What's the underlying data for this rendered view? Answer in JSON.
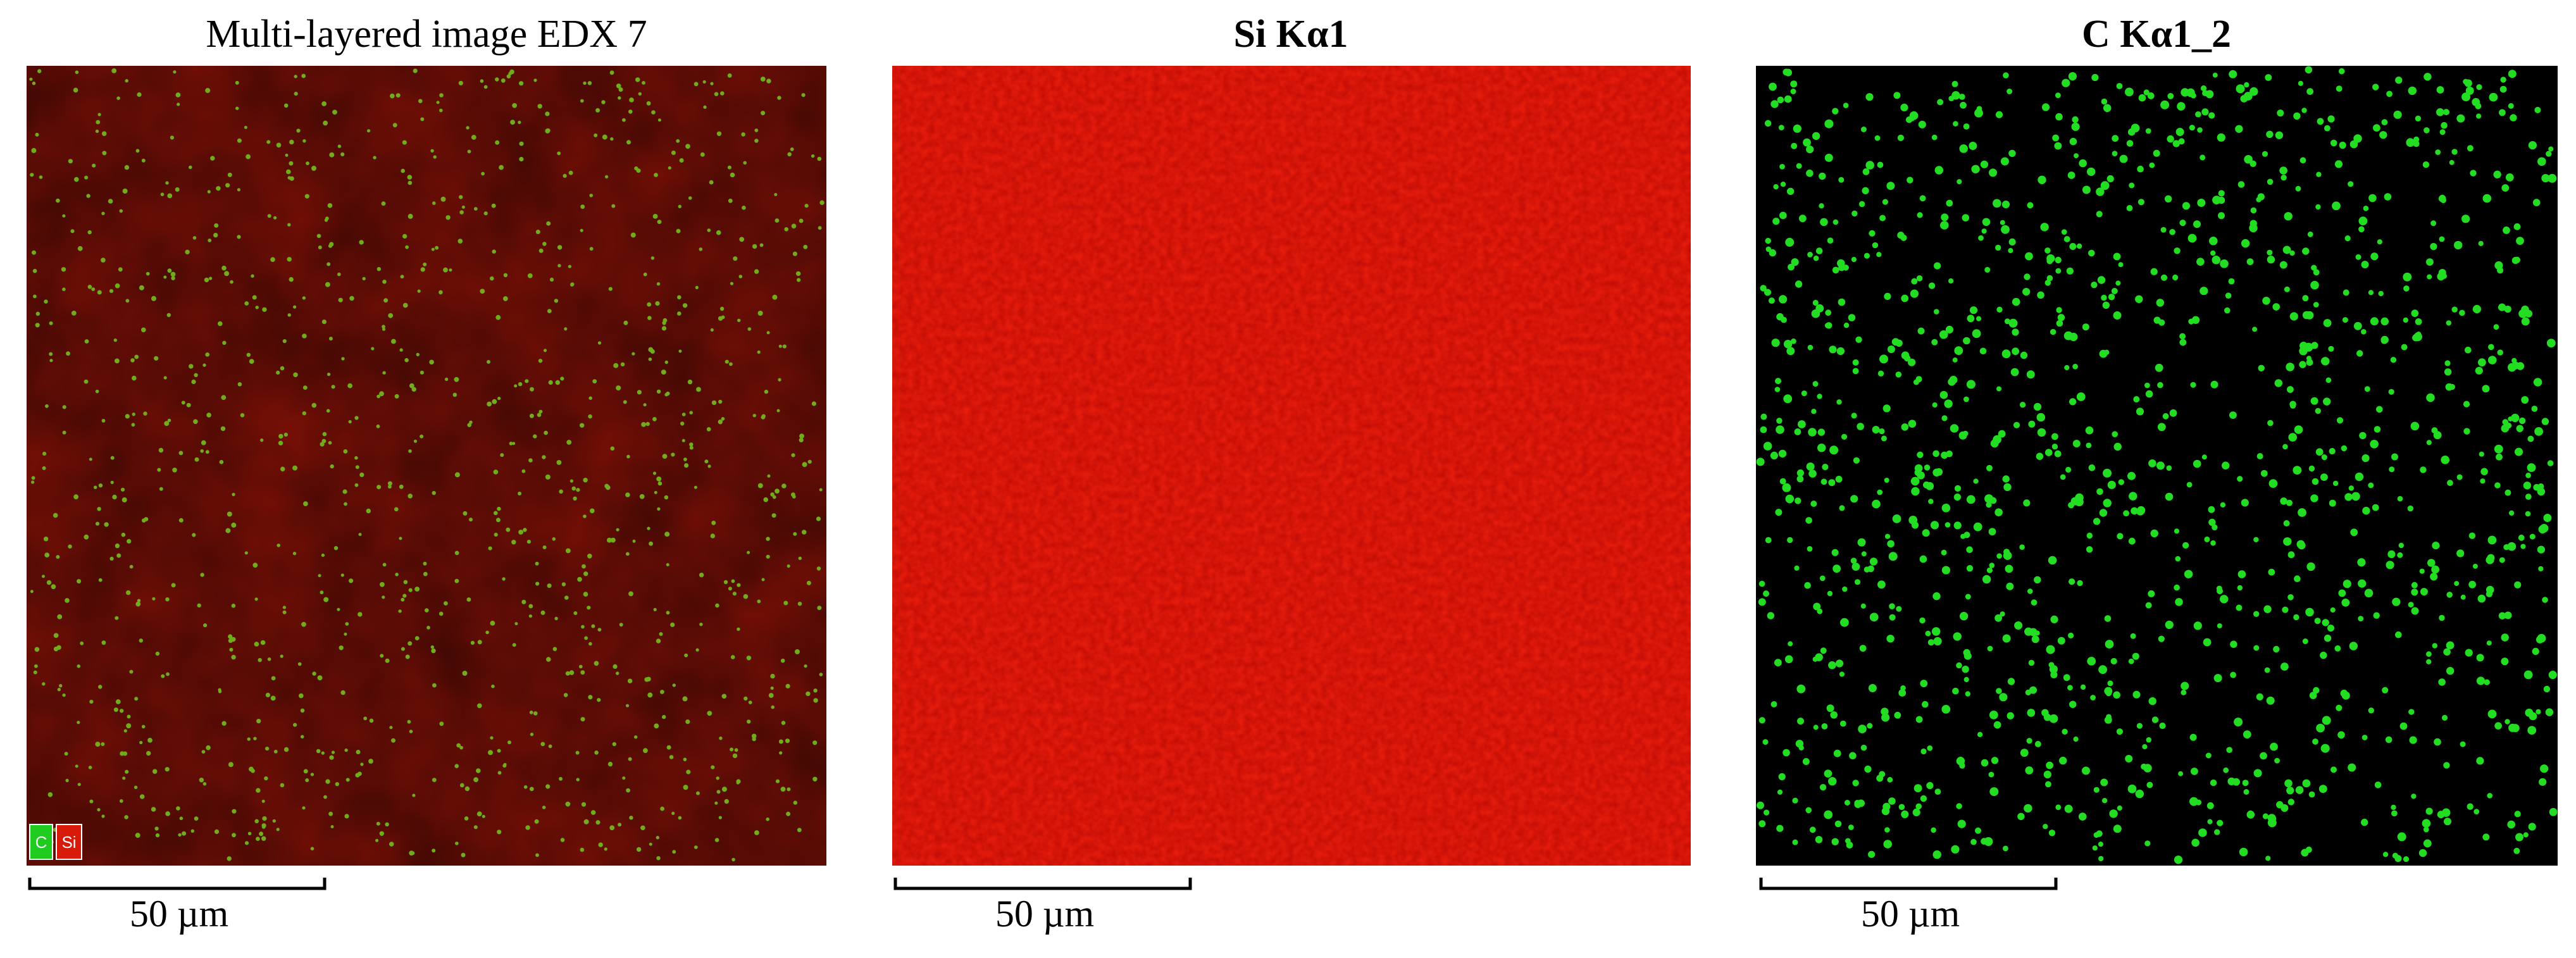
{
  "panels": [
    {
      "title": "Multi-layered image EDX 7",
      "scale_bar": "50 µm",
      "legend": [
        "C",
        "Si"
      ]
    },
    {
      "title": "Si Kα1",
      "scale_bar": "50 µm"
    },
    {
      "title": "C Kα1_2",
      "scale_bar": "50 µm"
    }
  ]
}
